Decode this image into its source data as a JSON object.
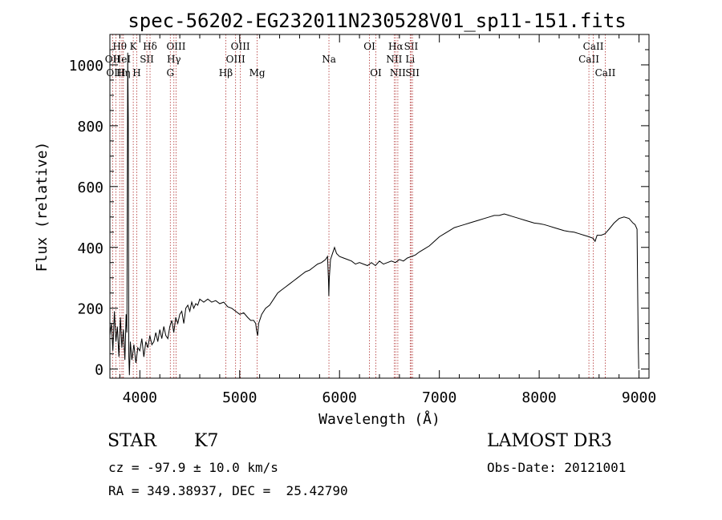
{
  "chart_data": {
    "type": "line",
    "title": "spec-56202-EG232011N230528V01_sp11-151.fits",
    "xlabel": "Wavelength (Å)",
    "ylabel": "Flux (relative)",
    "xlim": [
      3700,
      9100
    ],
    "ylim": [
      -30,
      1100
    ],
    "xticks": [
      4000,
      5000,
      6000,
      7000,
      8000,
      9000
    ],
    "yticks": [
      0,
      200,
      400,
      600,
      800,
      1000
    ],
    "series": [
      {
        "name": "flux",
        "points": [
          [
            3700,
            110
          ],
          [
            3715,
            150
          ],
          [
            3730,
            60
          ],
          [
            3745,
            190
          ],
          [
            3760,
            90
          ],
          [
            3775,
            140
          ],
          [
            3790,
            40
          ],
          [
            3805,
            170
          ],
          [
            3820,
            70
          ],
          [
            3835,
            130
          ],
          [
            3850,
            30
          ],
          [
            3862,
            180
          ],
          [
            3870,
            120
          ],
          [
            3878,
            1040
          ],
          [
            3884,
            820
          ],
          [
            3890,
            40
          ],
          [
            3895,
            -20
          ],
          [
            3905,
            90
          ],
          [
            3920,
            30
          ],
          [
            3940,
            80
          ],
          [
            3960,
            20
          ],
          [
            3980,
            70
          ],
          [
            4000,
            60
          ],
          [
            4020,
            100
          ],
          [
            4040,
            40
          ],
          [
            4060,
            90
          ],
          [
            4080,
            70
          ],
          [
            4100,
            110
          ],
          [
            4120,
            80
          ],
          [
            4140,
            90
          ],
          [
            4160,
            120
          ],
          [
            4180,
            90
          ],
          [
            4200,
            130
          ],
          [
            4220,
            100
          ],
          [
            4240,
            140
          ],
          [
            4260,
            110
          ],
          [
            4280,
            100
          ],
          [
            4300,
            140
          ],
          [
            4320,
            160
          ],
          [
            4340,
            120
          ],
          [
            4360,
            170
          ],
          [
            4380,
            150
          ],
          [
            4400,
            180
          ],
          [
            4420,
            190
          ],
          [
            4440,
            150
          ],
          [
            4460,
            200
          ],
          [
            4480,
            210
          ],
          [
            4500,
            190
          ],
          [
            4520,
            220
          ],
          [
            4540,
            200
          ],
          [
            4560,
            215
          ],
          [
            4580,
            210
          ],
          [
            4600,
            230
          ],
          [
            4640,
            220
          ],
          [
            4680,
            230
          ],
          [
            4720,
            220
          ],
          [
            4760,
            225
          ],
          [
            4800,
            215
          ],
          [
            4840,
            220
          ],
          [
            4880,
            205
          ],
          [
            4920,
            200
          ],
          [
            4960,
            190
          ],
          [
            5000,
            180
          ],
          [
            5040,
            185
          ],
          [
            5080,
            170
          ],
          [
            5110,
            160
          ],
          [
            5140,
            160
          ],
          [
            5160,
            150
          ],
          [
            5170,
            125
          ],
          [
            5180,
            110
          ],
          [
            5190,
            150
          ],
          [
            5220,
            180
          ],
          [
            5260,
            200
          ],
          [
            5300,
            210
          ],
          [
            5340,
            230
          ],
          [
            5380,
            250
          ],
          [
            5420,
            260
          ],
          [
            5460,
            270
          ],
          [
            5500,
            280
          ],
          [
            5540,
            290
          ],
          [
            5580,
            300
          ],
          [
            5620,
            310
          ],
          [
            5660,
            320
          ],
          [
            5700,
            325
          ],
          [
            5740,
            335
          ],
          [
            5780,
            345
          ],
          [
            5820,
            350
          ],
          [
            5860,
            360
          ],
          [
            5880,
            370
          ],
          [
            5890,
            290
          ],
          [
            5893,
            240
          ],
          [
            5898,
            300
          ],
          [
            5910,
            360
          ],
          [
            5930,
            380
          ],
          [
            5950,
            400
          ],
          [
            5970,
            380
          ],
          [
            6000,
            370
          ],
          [
            6040,
            365
          ],
          [
            6080,
            360
          ],
          [
            6120,
            355
          ],
          [
            6160,
            345
          ],
          [
            6200,
            350
          ],
          [
            6240,
            345
          ],
          [
            6280,
            340
          ],
          [
            6320,
            350
          ],
          [
            6360,
            340
          ],
          [
            6400,
            355
          ],
          [
            6440,
            345
          ],
          [
            6480,
            350
          ],
          [
            6520,
            355
          ],
          [
            6560,
            350
          ],
          [
            6600,
            360
          ],
          [
            6640,
            355
          ],
          [
            6680,
            365
          ],
          [
            6720,
            370
          ],
          [
            6760,
            375
          ],
          [
            6800,
            385
          ],
          [
            6850,
            395
          ],
          [
            6900,
            405
          ],
          [
            6950,
            420
          ],
          [
            7000,
            435
          ],
          [
            7050,
            445
          ],
          [
            7100,
            455
          ],
          [
            7150,
            465
          ],
          [
            7200,
            470
          ],
          [
            7250,
            475
          ],
          [
            7300,
            480
          ],
          [
            7350,
            485
          ],
          [
            7400,
            490
          ],
          [
            7450,
            495
          ],
          [
            7500,
            500
          ],
          [
            7550,
            505
          ],
          [
            7600,
            505
          ],
          [
            7650,
            510
          ],
          [
            7700,
            505
          ],
          [
            7750,
            500
          ],
          [
            7800,
            495
          ],
          [
            7850,
            490
          ],
          [
            7900,
            485
          ],
          [
            7950,
            480
          ],
          [
            8000,
            478
          ],
          [
            8050,
            475
          ],
          [
            8100,
            470
          ],
          [
            8150,
            465
          ],
          [
            8200,
            460
          ],
          [
            8250,
            455
          ],
          [
            8300,
            452
          ],
          [
            8350,
            450
          ],
          [
            8400,
            445
          ],
          [
            8450,
            440
          ],
          [
            8500,
            435
          ],
          [
            8540,
            430
          ],
          [
            8560,
            420
          ],
          [
            8580,
            440
          ],
          [
            8620,
            440
          ],
          [
            8660,
            445
          ],
          [
            8700,
            460
          ],
          [
            8750,
            480
          ],
          [
            8800,
            495
          ],
          [
            8850,
            500
          ],
          [
            8900,
            495
          ],
          [
            8940,
            480
          ],
          [
            8960,
            475
          ],
          [
            8980,
            460
          ],
          [
            8985,
            300
          ],
          [
            8992,
            80
          ],
          [
            8997,
            0
          ]
        ]
      }
    ],
    "lines": [
      {
        "label": "Hθ",
        "x": 3798,
        "row": 1
      },
      {
        "label": "OII",
        "x": 3727,
        "row": 2
      },
      {
        "label": "OIII",
        "x": 3760,
        "row": 3
      },
      {
        "label": "Hη",
        "x": 3835,
        "row": 3
      },
      {
        "label": "HeI",
        "x": 3820,
        "row": 2
      },
      {
        "label": "K",
        "x": 3934,
        "row": 1
      },
      {
        "label": "H",
        "x": 3969,
        "row": 3
      },
      {
        "label": "SII",
        "x": 4070,
        "row": 2
      },
      {
        "label": "Hδ",
        "x": 4102,
        "row": 1
      },
      {
        "label": "OIII",
        "x": 4363,
        "row": 1
      },
      {
        "label": "Hγ",
        "x": 4341,
        "row": 2
      },
      {
        "label": "G",
        "x": 4305,
        "row": 3
      },
      {
        "label": "Hβ",
        "x": 4861,
        "row": 3
      },
      {
        "label": "OIII",
        "x": 4959,
        "row": 2
      },
      {
        "label": "OIII",
        "x": 5007,
        "row": 1
      },
      {
        "label": "Mg",
        "x": 5175,
        "row": 3
      },
      {
        "label": "Na",
        "x": 5894,
        "row": 2
      },
      {
        "label": "OI",
        "x": 6300,
        "row": 1
      },
      {
        "label": "OI",
        "x": 6364,
        "row": 3
      },
      {
        "label": "NII",
        "x": 6548,
        "row": 2
      },
      {
        "label": "Hα",
        "x": 6563,
        "row": 1
      },
      {
        "label": "NII",
        "x": 6584,
        "row": 3
      },
      {
        "label": "SII",
        "x": 6717,
        "row": 1
      },
      {
        "label": "Li",
        "x": 6708,
        "row": 2
      },
      {
        "label": "SII",
        "x": 6731,
        "row": 3
      },
      {
        "label": "CaII",
        "x": 8498,
        "row": 2
      },
      {
        "label": "CaII",
        "x": 8542,
        "row": 1
      },
      {
        "label": "CaII",
        "x": 8662,
        "row": 3
      }
    ]
  },
  "info": {
    "class_label": "STAR",
    "subclass": "K7",
    "survey": "LAMOST DR3",
    "redshift": "cz = -97.9 ± 10.0 km/s",
    "obs_date": "Obs-Date: 20121001",
    "coords": "RA = 349.38937, DEC =  25.42790"
  },
  "colors": {
    "line_marker": "#b03030",
    "spectrum": "#000000"
  }
}
